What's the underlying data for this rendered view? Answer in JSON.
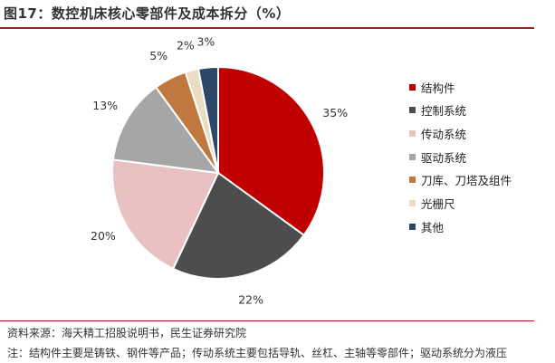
{
  "header": {
    "title": "图17：数控机床核心零部件及成本拆分（%）"
  },
  "chart_data": {
    "type": "pie",
    "title": "数控机床核心零部件及成本拆分（%）",
    "legend_position": "right",
    "categories": [
      "结构件",
      "控制系统",
      "传动系统",
      "驱动系统",
      "刀库、刀塔及组件",
      "光栅尺",
      "其他"
    ],
    "values": [
      35,
      22,
      20,
      13,
      5,
      2,
      3
    ],
    "value_labels": [
      "35%",
      "22%",
      "20%",
      "13%",
      "5%",
      "2%",
      "3%"
    ],
    "colors": [
      "#c00000",
      "#4d4d4f",
      "#eac1c2",
      "#a6a6a6",
      "#c0783f",
      "#e9dcc0",
      "#2d4769"
    ]
  },
  "footer": {
    "source": "资料来源：海天精工招股说明书，民生证券研究院",
    "note": "注：结构件主要是铸铁、钢件等产品；传动系统主要包括导轨、丝杠、主轴等零部件；驱动系统分为液压"
  }
}
